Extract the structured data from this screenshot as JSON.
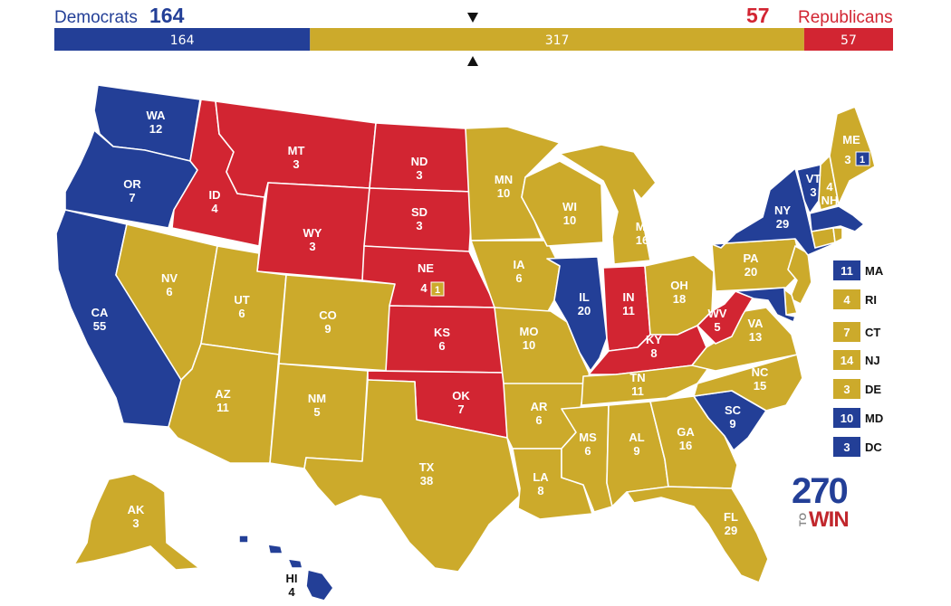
{
  "colors": {
    "dem": "#233f97",
    "rep": "#d22532",
    "tossup": "#ccaa2b"
  },
  "header": {
    "dem_label": "Democrats",
    "dem_total": "164",
    "rep_total": "57",
    "rep_label": "Republicans",
    "bar": {
      "dem": 164,
      "tossup": 317,
      "rep": 57,
      "dem_label": "164",
      "tossup_label": "317",
      "rep_label": "57"
    }
  },
  "states": [
    {
      "abbr": "WA",
      "ev": "12",
      "party": "dem"
    },
    {
      "abbr": "OR",
      "ev": "7",
      "party": "dem"
    },
    {
      "abbr": "CA",
      "ev": "55",
      "party": "dem"
    },
    {
      "abbr": "ID",
      "ev": "4",
      "party": "rep"
    },
    {
      "abbr": "NV",
      "ev": "6",
      "party": "tossup"
    },
    {
      "abbr": "MT",
      "ev": "3",
      "party": "rep"
    },
    {
      "abbr": "WY",
      "ev": "3",
      "party": "rep"
    },
    {
      "abbr": "UT",
      "ev": "6",
      "party": "tossup"
    },
    {
      "abbr": "CO",
      "ev": "9",
      "party": "tossup"
    },
    {
      "abbr": "AZ",
      "ev": "11",
      "party": "tossup"
    },
    {
      "abbr": "NM",
      "ev": "5",
      "party": "tossup"
    },
    {
      "abbr": "ND",
      "ev": "3",
      "party": "rep"
    },
    {
      "abbr": "SD",
      "ev": "3",
      "party": "rep"
    },
    {
      "abbr": "NE",
      "ev": "4",
      "party": "rep"
    },
    {
      "abbr": "KS",
      "ev": "6",
      "party": "rep"
    },
    {
      "abbr": "OK",
      "ev": "7",
      "party": "rep"
    },
    {
      "abbr": "TX",
      "ev": "38",
      "party": "tossup"
    },
    {
      "abbr": "MN",
      "ev": "10",
      "party": "tossup"
    },
    {
      "abbr": "IA",
      "ev": "6",
      "party": "tossup"
    },
    {
      "abbr": "MO",
      "ev": "10",
      "party": "tossup"
    },
    {
      "abbr": "AR",
      "ev": "6",
      "party": "tossup"
    },
    {
      "abbr": "LA",
      "ev": "8",
      "party": "tossup"
    },
    {
      "abbr": "WI",
      "ev": "10",
      "party": "tossup"
    },
    {
      "abbr": "IL",
      "ev": "20",
      "party": "dem"
    },
    {
      "abbr": "MI",
      "ev": "16",
      "party": "tossup"
    },
    {
      "abbr": "IN",
      "ev": "11",
      "party": "rep"
    },
    {
      "abbr": "OH",
      "ev": "18",
      "party": "tossup"
    },
    {
      "abbr": "KY",
      "ev": "8",
      "party": "rep"
    },
    {
      "abbr": "TN",
      "ev": "11",
      "party": "tossup"
    },
    {
      "abbr": "MS",
      "ev": "6",
      "party": "tossup"
    },
    {
      "abbr": "AL",
      "ev": "9",
      "party": "tossup"
    },
    {
      "abbr": "GA",
      "ev": "16",
      "party": "tossup"
    },
    {
      "abbr": "FL",
      "ev": "29",
      "party": "tossup"
    },
    {
      "abbr": "SC",
      "ev": "9",
      "party": "dem"
    },
    {
      "abbr": "NC",
      "ev": "15",
      "party": "tossup"
    },
    {
      "abbr": "VA",
      "ev": "13",
      "party": "tossup"
    },
    {
      "abbr": "WV",
      "ev": "5",
      "party": "rep"
    },
    {
      "abbr": "PA",
      "ev": "20",
      "party": "tossup"
    },
    {
      "abbr": "NY",
      "ev": "29",
      "party": "dem"
    },
    {
      "abbr": "VT",
      "ev": "3",
      "party": "dem"
    },
    {
      "abbr": "NH",
      "ev": "4",
      "party": "tossup"
    },
    {
      "abbr": "ME",
      "ev": "3",
      "party": "tossup"
    },
    {
      "abbr": "AK",
      "ev": "3",
      "party": "tossup"
    },
    {
      "abbr": "HI",
      "ev": "4",
      "party": "dem"
    }
  ],
  "splits": {
    "ne_district": {
      "ev": "1",
      "party": "tossup"
    },
    "me_district": {
      "ev": "1",
      "party": "dem"
    }
  },
  "small_states": [
    {
      "abbr": "MA",
      "ev": "11",
      "party": "dem"
    },
    {
      "abbr": "RI",
      "ev": "4",
      "party": "tossup"
    },
    {
      "abbr": "CT",
      "ev": "7",
      "party": "tossup"
    },
    {
      "abbr": "NJ",
      "ev": "14",
      "party": "tossup"
    },
    {
      "abbr": "DE",
      "ev": "3",
      "party": "tossup"
    },
    {
      "abbr": "MD",
      "ev": "10",
      "party": "dem"
    },
    {
      "abbr": "DC",
      "ev": "3",
      "party": "dem"
    }
  ],
  "logo": {
    "number": "270",
    "to": "TO",
    "win": "WIN"
  }
}
